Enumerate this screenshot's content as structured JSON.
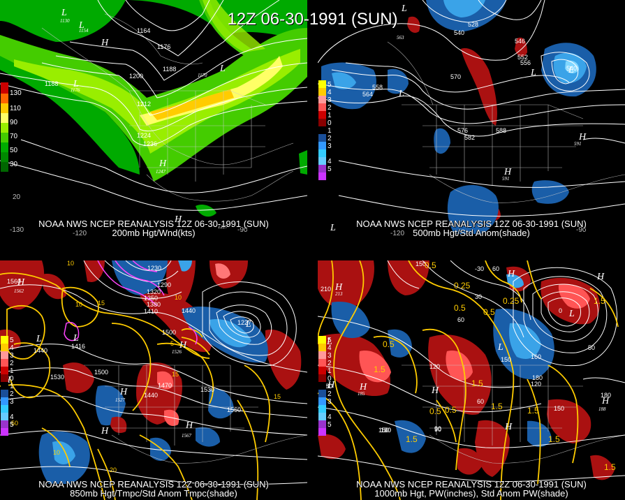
{
  "title": "12Z 06-30-1991 (SUN)",
  "panels": [
    {
      "id": "p1",
      "caption_line1": "NOAA NWS NCEP REANALYSIS 12Z 06-30-1991 (SUN)",
      "caption_line2": "200mb Hgt/Wnd(kts)",
      "legend": {
        "labels": [
          "130",
          "110",
          "90",
          "70",
          "50",
          "30"
        ],
        "colors": [
          "#cc0000",
          "#ff6600",
          "#ffcc00",
          "#ffff66",
          "#99ee00",
          "#44cc00",
          "#00aa00",
          "#008800",
          "#006600"
        ]
      },
      "contour_labels": [
        "1130",
        "1154",
        "1164",
        "1176",
        "1188",
        "1170",
        "1188",
        "1176",
        "1200",
        "1212",
        "1224",
        "1236",
        "1247",
        "1227"
      ],
      "lon_labels": [
        "-130",
        "-120",
        "-90",
        "20"
      ]
    },
    {
      "id": "p2",
      "caption_line1": "NOAA NWS NCEP REANALYSIS 12Z 06-30-1991 (SUN)",
      "caption_line2": "500mb Hgt/Std Anom(shade)",
      "legend": {
        "labels": [
          "5",
          "4",
          "3",
          "2",
          "1",
          "0",
          "1",
          "2",
          "3",
          "4",
          "5"
        ],
        "colors": [
          "#ffff00",
          "#ffcc00",
          "#ff9999",
          "#ff5555",
          "#cc0000",
          "#880000",
          "#000000",
          "#1a4f99",
          "#3399ff",
          "#33ccff",
          "#66ccff",
          "#9933cc",
          "#cc33ff"
        ]
      },
      "contour_labels": [
        "528",
        "540",
        "546",
        "552",
        "558",
        "564",
        "570",
        "576",
        "582",
        "588",
        "591",
        "591",
        "563",
        "556",
        "540"
      ],
      "lon_labels": [
        "-120",
        "-90"
      ]
    },
    {
      "id": "p3",
      "caption_line1": "NOAA NWS NCEP REANALYSIS 12Z 06-30-1991 (SUN)",
      "caption_line2": "850mb Hgt/Tmpc/Std Anom Tmpc(shade)",
      "legend": {
        "labels": [
          "5",
          "4",
          "3",
          "2",
          "1",
          "0",
          "1",
          "2",
          "3",
          "4",
          "5"
        ],
        "colors": [
          "#ffff00",
          "#ffcc00",
          "#ff9999",
          "#ff5555",
          "#cc0000",
          "#880000",
          "#000000",
          "#1a4f99",
          "#3399ff",
          "#33ccff",
          "#66ccff",
          "#9933cc",
          "#cc33ff"
        ]
      },
      "contour_labels": [
        "1560",
        "1562",
        "1440",
        "1416",
        "1500",
        "1530",
        "1470",
        "1440",
        "1527",
        "1530",
        "1560",
        "1567",
        "1230",
        "1290",
        "1320",
        "1350",
        "1380",
        "1410",
        "1440",
        "1500",
        "1526",
        "1227"
      ],
      "temp_labels": [
        "10",
        "15",
        "10",
        "5",
        "10",
        "15",
        "20",
        "10",
        "15",
        "50"
      ],
      "lon_labels": []
    },
    {
      "id": "p4",
      "caption_line1": "NOAA NWS NCEP REANALYSIS 12Z 06-30-1991 (SUN)",
      "caption_line2": "1000mb Hgt, PW(inches), Std Anom PW(shade)",
      "legend": {
        "labels": [
          "5",
          "4",
          "3",
          "2",
          "1",
          "0",
          "1",
          "2",
          "3",
          "4",
          "5"
        ],
        "colors": [
          "#ffff00",
          "#ffcc00",
          "#ff9999",
          "#ff5555",
          "#cc0000",
          "#880000",
          "#000000",
          "#1a4f99",
          "#3399ff",
          "#33ccff",
          "#66ccff",
          "#9933cc",
          "#cc33ff"
        ]
      },
      "contour_labels": [
        "150",
        "210",
        "213",
        "60",
        "30",
        "60",
        "120",
        "180",
        "185",
        "90",
        "150",
        "180",
        "150",
        "120",
        "60",
        "150",
        "180",
        "188",
        "90",
        "120",
        "150",
        "160",
        "0",
        "-30",
        "50"
      ],
      "pw_labels": [
        "0.5",
        "0.25",
        "0.5",
        "0.25",
        "1.5",
        "1.5",
        "0.5",
        "0.5",
        "1.5",
        "1.5",
        "0.5",
        "1.5",
        "1.5",
        "1.5",
        "1.5",
        "0.5"
      ],
      "lon_labels": []
    }
  ],
  "symbols": {
    "low": "L",
    "high": "H"
  }
}
